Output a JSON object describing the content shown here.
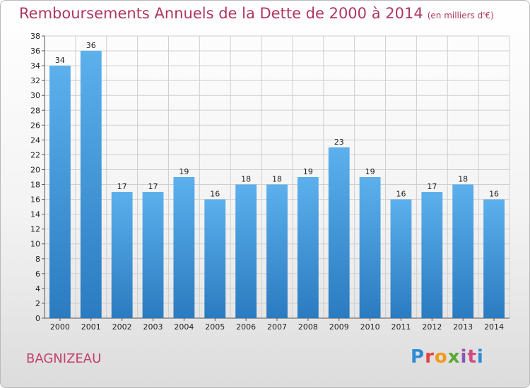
{
  "header": {
    "title": "Remboursements Annuels de la Dette de 2000 à 2014",
    "unit": "(en milliers d'€)"
  },
  "commune": "BAGNIZEAU",
  "logo": "Proxiti",
  "colors": {
    "title": "#b0365f",
    "bar_top": "#5cb0ec",
    "bar_bottom": "#2a7bc0",
    "grid": "#cfcfcf"
  },
  "chart_data": {
    "type": "bar",
    "categories": [
      "2000",
      "2001",
      "2002",
      "2003",
      "2004",
      "2005",
      "2006",
      "2007",
      "2008",
      "2009",
      "2010",
      "2011",
      "2012",
      "2013",
      "2014"
    ],
    "values": [
      34,
      36,
      17,
      17,
      19,
      16,
      18,
      18,
      19,
      23,
      19,
      16,
      17,
      18,
      16
    ],
    "title": "Remboursements Annuels de la Dette de 2000 à 2014",
    "ylim": [
      0,
      38
    ],
    "ytick_step": 2,
    "grid": true
  }
}
